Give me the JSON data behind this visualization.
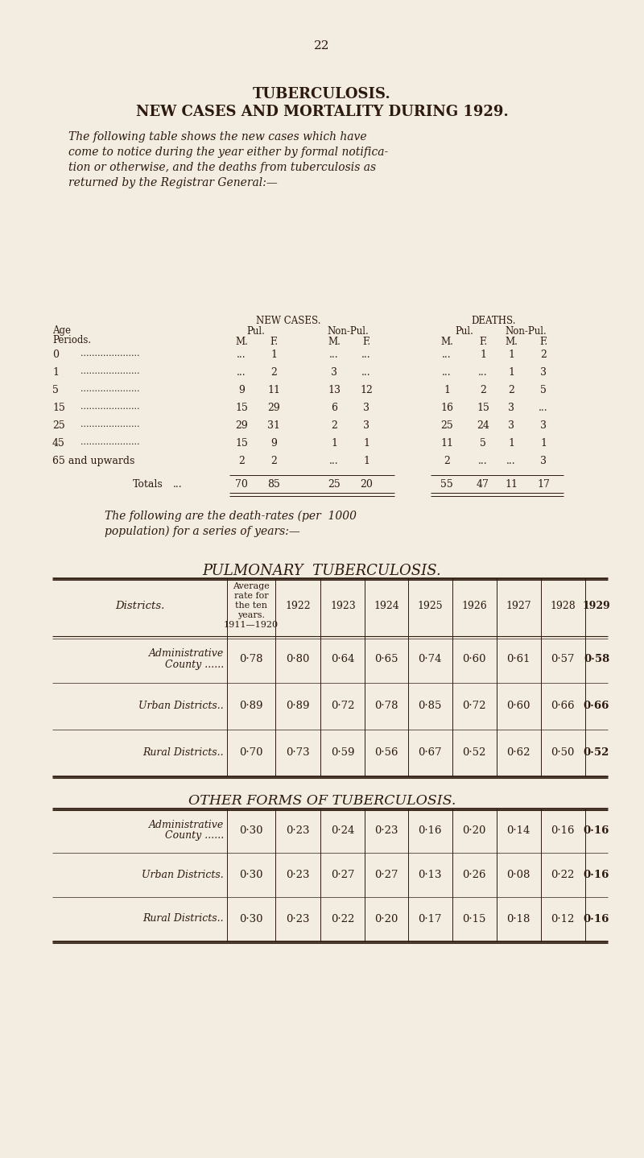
{
  "bg_color": "#f2ede0",
  "text_color": "#2d1a0e",
  "page_number": "22",
  "title1": "TUBERCULOSIS.",
  "title2": "NEW CASES AND MORTALITY DURING 1929.",
  "para1_lines": [
    "The following table shows the new cases which have",
    "come to notice during the year either by formal notifica-",
    "tion or otherwise, and the deaths from tuberculosis as",
    "returned by the Registrar General:—"
  ],
  "nc_header": "NEW CASES.",
  "d_header": "DEATHS.",
  "pul1": "Pul.",
  "nonpul1": "Non-Pul.",
  "pul2": "Pul.",
  "nonpul2": "Non-Pul.",
  "age_label": "Age",
  "periods_label": "Periods.",
  "mf_labels": [
    "M.",
    "F.",
    "M.",
    "F.",
    "M.",
    "F.",
    "M.",
    "F."
  ],
  "table1_rows": [
    [
      "0",
      "...",
      "1",
      "...",
      "...",
      "...",
      "1",
      "1",
      "2"
    ],
    [
      "1",
      "...",
      "2",
      "3",
      "...",
      "...",
      "...",
      "1",
      "3"
    ],
    [
      "5",
      "9",
      "11",
      "13",
      "12",
      "1",
      "2",
      "2",
      "5"
    ],
    [
      "15",
      "15",
      "29",
      "6",
      "3",
      "16",
      "15",
      "3",
      "..."
    ],
    [
      "25",
      "29",
      "31",
      "2",
      "3",
      "25",
      "24",
      "3",
      "3"
    ],
    [
      "45",
      "15",
      "9",
      "1",
      "1",
      "11",
      "5",
      "1",
      "1"
    ],
    [
      "65 and upwards",
      "2",
      "2",
      "...",
      "1",
      "2",
      "...",
      "...",
      "3"
    ]
  ],
  "table1_totals": [
    "70",
    "85",
    "25",
    "20",
    "55",
    "47",
    "11",
    "17"
  ],
  "para2_lines": [
    "The following are the death-rates (per  1000",
    "population) for a series of years:—"
  ],
  "pul_title": "PULMONARY  TUBERCULOSIS.",
  "pul_col_header": [
    "Districts.",
    "Average\nrate for\nthe ten\nyears.\n1911—1920",
    "1922",
    "1923",
    "1924",
    "1925",
    "1926",
    "1927",
    "1928",
    "1929"
  ],
  "pul_rows": [
    [
      "Administrative\nCounty ......",
      "0·78",
      "0·80",
      "0·64",
      "0·65",
      "0·74",
      "0·60",
      "0·61",
      "0·57",
      "0·58"
    ],
    [
      "Urban Districts..",
      "0·89",
      "0·89",
      "0·72",
      "0·78",
      "0·85",
      "0·72",
      "0·60",
      "0·66",
      "0·66"
    ],
    [
      "Rural Districts..",
      "0·70",
      "0·73",
      "0·59",
      "0·56",
      "0·67",
      "0·52",
      "0·62",
      "0·50",
      "0·52"
    ]
  ],
  "other_title": "OTHER FORMS OF TUBERCULOSIS.",
  "other_rows": [
    [
      "Administrative\nCounty ......",
      "0·30",
      "0·23",
      "0·24",
      "0·23",
      "0·16",
      "0·20",
      "0·14",
      "0·16",
      "0·16"
    ],
    [
      "Urban Districts.",
      "0·30",
      "0·23",
      "0·27",
      "0·27",
      "0·13",
      "0·26",
      "0·08",
      "0·22",
      "0·16"
    ],
    [
      "Rural Districts..",
      "0·30",
      "0·23",
      "0·22",
      "0·20",
      "0·17",
      "0·15",
      "0·18",
      "0·12",
      "0·16"
    ]
  ]
}
